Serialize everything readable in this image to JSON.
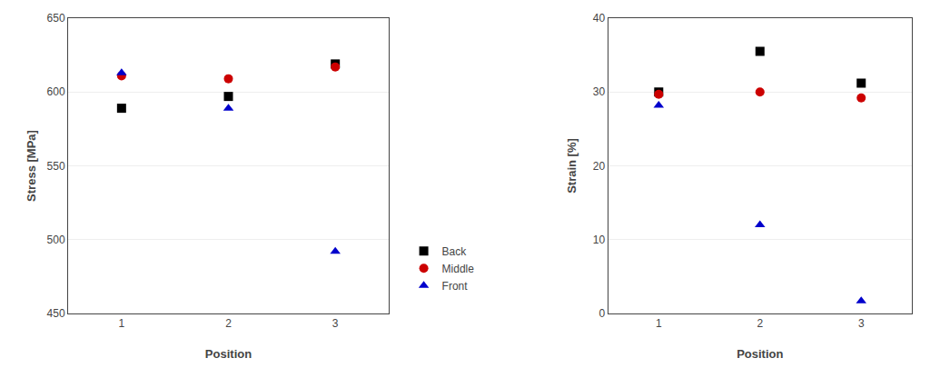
{
  "chart_data": [
    {
      "type": "scatter",
      "x": [
        1,
        2,
        3
      ],
      "xlabel": "Position",
      "ylabel": "Stress [MPa]",
      "xlim": [
        0.5,
        3.5
      ],
      "xticks": [
        1,
        2,
        3
      ],
      "ylim": [
        450,
        650
      ],
      "yticks": [
        450,
        500,
        550,
        600,
        650
      ],
      "grid": "y",
      "legend": "right",
      "series": [
        {
          "name": "Back",
          "color": "#000000",
          "marker": "square",
          "values": [
            589,
            597,
            619
          ]
        },
        {
          "name": "Middle",
          "color": "#cc0000",
          "marker": "circle",
          "values": [
            611,
            609,
            617
          ]
        },
        {
          "name": "Front",
          "color": "#0000cc",
          "marker": "triangle-up",
          "values": [
            613,
            589,
            492
          ]
        }
      ]
    },
    {
      "type": "scatter",
      "x": [
        1,
        2,
        3
      ],
      "xlabel": "Position",
      "ylabel": "Strain [%]",
      "xlim": [
        0.5,
        3.5
      ],
      "xticks": [
        1,
        2,
        3
      ],
      "ylim": [
        0,
        40
      ],
      "yticks": [
        0,
        10,
        20,
        30,
        40
      ],
      "grid": "y",
      "series": [
        {
          "name": "Back",
          "color": "#000000",
          "marker": "square",
          "values": [
            30.0,
            35.5,
            31.2
          ]
        },
        {
          "name": "Middle",
          "color": "#cc0000",
          "marker": "circle",
          "values": [
            29.7,
            30.0,
            29.2
          ]
        },
        {
          "name": "Front",
          "color": "#0000cc",
          "marker": "triangle-up",
          "values": [
            28.2,
            12.0,
            1.7
          ]
        }
      ]
    }
  ]
}
